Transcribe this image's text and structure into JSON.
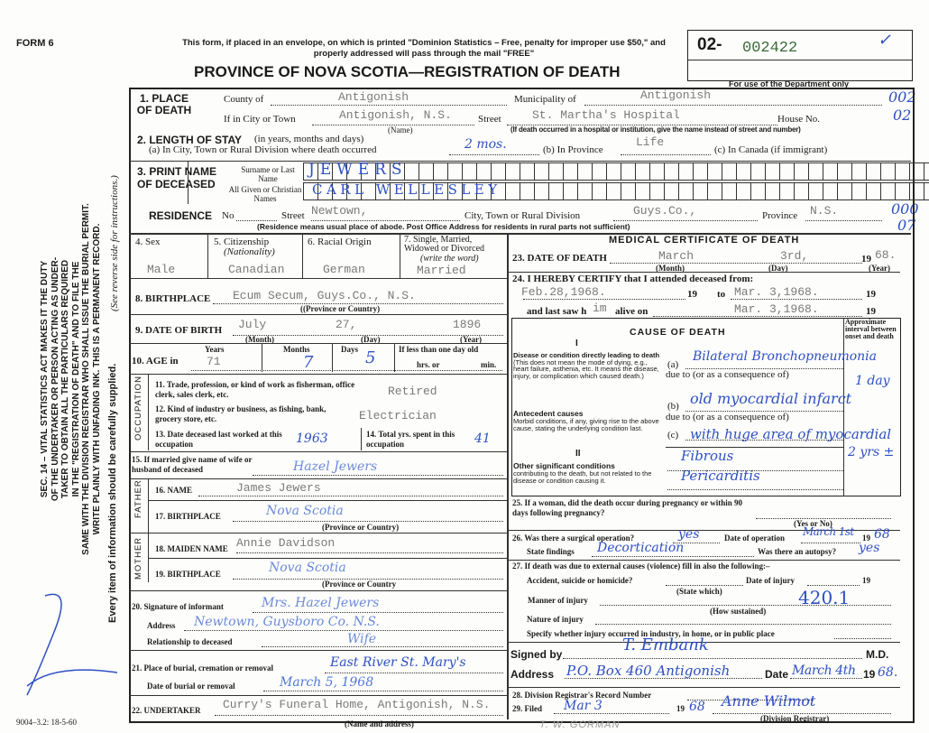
{
  "form_id": "FORM 6",
  "mail_notice": "This form, if placed in an envelope, on which is printed \"Dominion Statistics – Free, penalty for improper use $50,\" and properly addressed will pass through the mail \"FREE\"",
  "title": "PROVINCE OF NOVA SCOTIA—REGISTRATION OF DEATH",
  "registration_number": {
    "prefix": "02-",
    "number": "002422",
    "check": "✓"
  },
  "dept_only": "For use of the Department only",
  "dept_codes": [
    "002",
    "02",
    "000",
    "07"
  ],
  "side_text": {
    "lines": [
      "SEC. 14 – VITAL STATISTICS ACT MAKES IT THE DUTY",
      "OF THE UNDERTAKER OR PERSON ACTING AS UNDER-",
      "TAKER TO OBTAIN ALL THE PARTICULARS REQUIRED",
      "IN THE \"REGISTRATION OF DEATH\" AND TO FILE THE",
      "SAME WITH THE DIVISION REGISTRAR WHO SHALL ISSUE THE BURIAL PERMIT.",
      "WRITE PLAINLY WITH UNFADING INK. THIS IS A PERMANENT RECORD."
    ],
    "every_item": "Every item of information should be carefully supplied.",
    "see_reverse": "(See reverse side for instructions.)"
  },
  "form_code": "9004–3.2: 18-5-60",
  "s1": {
    "label": "1. PLACE OF DEATH",
    "county_label": "County of",
    "county": "Antigonish",
    "municipality_label": "Municipality of",
    "municipality": "Antigonish",
    "city_label": "If in City or Town",
    "city": "Antigonish, N.S.",
    "name_note": "(Name)",
    "street_label": "Street",
    "street": "St. Martha's Hospital",
    "house_label": "House No.",
    "hospital_note": "(If death occurred in a hospital or institution, give the name instead of street and number)"
  },
  "s2": {
    "label": "2. LENGTH OF STAY",
    "label_note": "(in years, months and days)",
    "a_label": "(a) In City, Town or Rural Division where death occurred",
    "a_value": "2 mos.",
    "b_label": "(b) In Province",
    "b_value": "Life",
    "c_label": "(c) In Canada (if immigrant)"
  },
  "s3": {
    "label": "3. PRINT NAME OF DECEASED",
    "surname_label": "Surname or Last Name",
    "surname": "JEWERS",
    "given_label": "All Given or Christian Names",
    "given": "CARL WELLESLEY"
  },
  "residence": {
    "label": "RESIDENCE",
    "no_label": "No",
    "street_label": "Street",
    "street": "Newtown,",
    "city_label": "City, Town or Rural Division",
    "city": "Guys.Co.,",
    "province_label": "Province",
    "province": "N.S.",
    "note": "(Residence means usual place of abode. Post Office Address for residents in rural parts not sufficient)"
  },
  "s4": {
    "label": "4. Sex",
    "value": "Male"
  },
  "s5": {
    "label": "5. Citizenship",
    "sub": "(Nationality)",
    "value": "Canadian"
  },
  "s6": {
    "label": "6. Racial Origin",
    "value": "German"
  },
  "s7": {
    "label": "7. Single, Married, Widowed or Divorced",
    "sub": "(write the word)",
    "value": "Married"
  },
  "s8": {
    "label": "8. BIRTHPLACE",
    "value": "Ecum Secum, Guys.Co., N.S.",
    "note": "((Province or Country)"
  },
  "s9": {
    "label": "9. DATE OF BIRTH",
    "month": "July",
    "day": "27,",
    "year": "1896",
    "month_note": "(Month)",
    "day_note": "(Day)",
    "year_note": "(Year)"
  },
  "s10": {
    "label": "10. AGE in",
    "years_label": "Years",
    "years": "71",
    "months_label": "Months",
    "months": "7",
    "days_label": "Days",
    "days": "5",
    "less_label": "If less than one day old",
    "hrs_label": "hrs. or",
    "min_label": "min."
  },
  "occupation": {
    "label": "OCCUPATION",
    "s11_label": "11. Trade, profession, or kind of work as fisherman, office clerk, sales clerk, etc.",
    "s11": "Retired",
    "s12_label": "12. Kind of industry or business, as fishing, bank, grocery store, etc.",
    "s12": "Electrician",
    "s13_label": "13. Date deceased last worked at this occupation",
    "s13": "1963",
    "s14_label": "14. Total yrs. spent in this occupation",
    "s14": "41"
  },
  "s15": {
    "label": "15. If married give name of wife or husband of deceased",
    "value": "Hazel Jewers"
  },
  "father": {
    "label": "FATHER",
    "name_label": "16. NAME",
    "name": "James Jewers",
    "bp_label": "17. BIRTHPLACE",
    "bp": "Nova Scotia",
    "note": "(Province or Country)"
  },
  "mother": {
    "label": "MOTHER",
    "name_label": "18. MAIDEN NAME",
    "name": "Annie Davidson",
    "bp_label": "19. BIRTHPLACE",
    "bp": "Nova Scotia",
    "note": "(Province or Country"
  },
  "s20": {
    "sig_label": "20. Signature of informant",
    "sig": "Mrs. Hazel Jewers",
    "addr_label": "Address",
    "addr": "Newtown, Guysboro Co. N.S.",
    "rel_label": "Relationship to deceased",
    "rel": "Wife"
  },
  "s21": {
    "place_label": "21. Place of burial, cremation or removal",
    "place": "East River St. Mary's",
    "date_label": "Date of burial or removal",
    "date": "March 5, 1968"
  },
  "s22": {
    "label": "22. UNDERTAKER",
    "value": "Curry's Funeral Home, Antigonish, N.S.",
    "note": "(Name and address)"
  },
  "medical": {
    "title": "MEDICAL CERTIFICATE OF DEATH",
    "s23_label": "23. DATE OF DEATH",
    "month": "March",
    "day": "3rd,",
    "year_prefix": "19",
    "year": "68.",
    "month_note": "(Month)",
    "day_note": "(Day)",
    "year_note": "(Year)",
    "s24_label": "24. I HEREBY CERTIFY that I attended deceased from:",
    "from": "Feb.28,1968.",
    "nineteen": "19",
    "to_label": "to",
    "to": "Mar. 3,1968.",
    "last_saw_label": "and last saw h",
    "him": "im",
    "alive_label": "alive on",
    "alive": "Mar. 3,1968."
  },
  "cause": {
    "title": "CAUSE OF DEATH",
    "roman1": "I",
    "roman2": "II",
    "interval_label": "Approximate interval between onset and death",
    "disease_label": "Disease or condition directly leading to death",
    "disease_note": "(This does not mean the mode of dying, e.g., heart failure, asthenia, etc. It means the disease, injury, or complication which caused death.)",
    "antecedent_label": "Antecedent causes",
    "antecedent_note": "Morbid conditions, if any, giving rise to the above cause, stating the underlying condition last.",
    "other_label": "Other significant conditions",
    "other_note": "contributing to the death, but not related to the disease or condition causing it.",
    "a_label": "(a)",
    "a": "Bilateral Bronchopneumonia",
    "a_interval": "1 day",
    "due_to": "due to (or as a consequence of)",
    "b_label": "(b)",
    "b": "old myocardial infarct",
    "c_label": "(c)",
    "c": "with huge area of myocardial",
    "c_interval": "2 yrs ±",
    "other1": "Fibrous",
    "other2": "Pericarditis"
  },
  "s25": {
    "label": "25. If a woman, did the death occur during pregnancy or within 90 days following pregnancy?",
    "note": "(Yes or No)"
  },
  "s26": {
    "label": "26. Was there a surgical operation?",
    "value": "yes",
    "date_label": "Date of operation",
    "date": "March 1st",
    "year_prefix": "19",
    "year": "68",
    "findings_label": "State findings",
    "findings": "Decortication",
    "autopsy_label": "Was there an autopsy?",
    "autopsy": "yes"
  },
  "s27": {
    "label": "27. If death was due to external causes (violence) fill in also the following:–",
    "accident_label": "Accident, suicide or homicide?",
    "state_which": "(State which)",
    "injury_date_label": "Date of injury",
    "year_prefix": "19",
    "manner_label": "Manner of injury",
    "how": "(How sustained)",
    "code": "420.1",
    "nature_label": "Nature of injury",
    "specify_label": "Specify whether injury occurred in industry, in home, or in public place"
  },
  "signed": {
    "label": "Signed by",
    "value": "T. Embank",
    "md": "M.D.",
    "addr_label": "Address",
    "addr": "P.O. Box 460 Antigonish",
    "date_label": "Date",
    "date": "March 4th",
    "year_prefix": "19",
    "year": "68."
  },
  "s28": {
    "label": "28. Division Registrar's Record Number"
  },
  "s29": {
    "label": "29. Filed",
    "date": "Mar 3",
    "year_prefix": "19",
    "year": "68",
    "registrar": "Anne Wilmot",
    "registrar_note": "(Division Registrar)"
  },
  "stamp": "T. W. GORMAN"
}
